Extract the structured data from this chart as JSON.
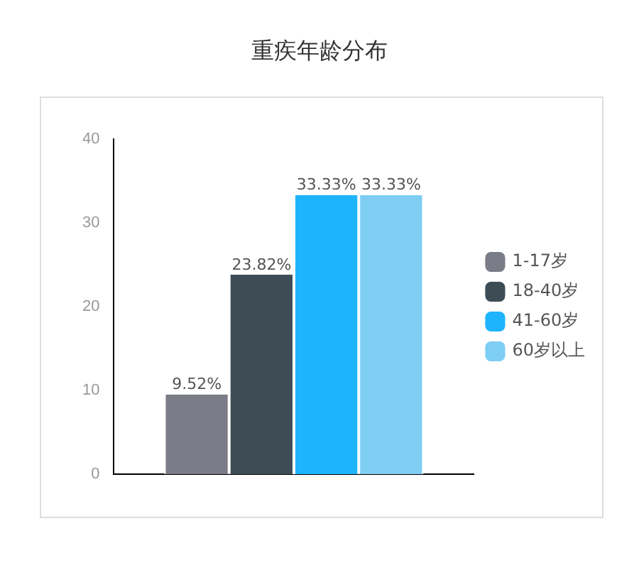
{
  "chart_data": {
    "type": "bar",
    "title": "重疾年龄分布",
    "categories": [
      null
    ],
    "series": [
      {
        "name": "1-17岁",
        "color": "#7a7c87",
        "values": [
          9.52
        ],
        "value_labels": [
          "9.52%"
        ]
      },
      {
        "name": "18-40岁",
        "color": "#3e4d55",
        "values": [
          23.82
        ],
        "value_labels": [
          "23.82%"
        ]
      },
      {
        "name": "41-60岁",
        "color": "#1eb4fd",
        "values": [
          33.33
        ],
        "value_labels": [
          "33.33%"
        ]
      },
      {
        "name": "60岁以上",
        "color": "#7ecef4",
        "values": [
          33.33
        ],
        "value_labels": [
          "33.33%"
        ]
      }
    ],
    "ylim": [
      0,
      40
    ],
    "yticks": [
      0,
      10,
      20,
      30,
      40
    ],
    "grid": false,
    "legend": "right"
  }
}
